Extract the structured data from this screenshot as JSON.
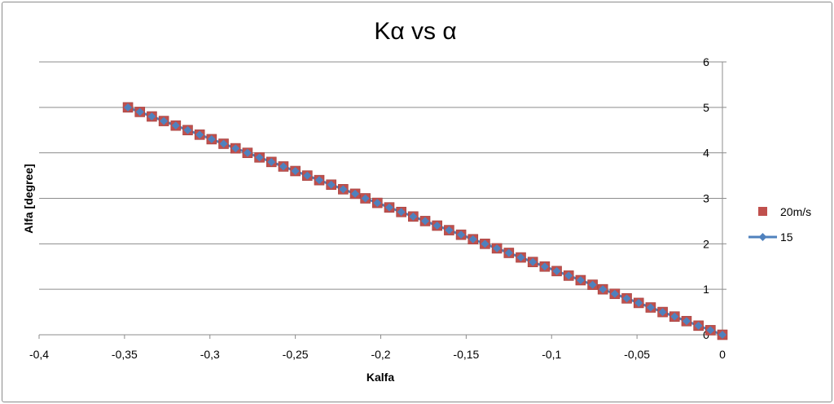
{
  "chart_data": {
    "type": "scatter",
    "title": "Kα vs α",
    "xlabel": "Kalfa",
    "ylabel": "Alfa [degree]",
    "xlim": [
      -0.4,
      0
    ],
    "ylim": [
      0,
      6
    ],
    "xticks": [
      "-0,4",
      "-0,35",
      "-0,3",
      "-0,25",
      "-0,2",
      "-0,15",
      "-0,1",
      "-0,05",
      "0"
    ],
    "xtick_values": [
      -0.4,
      -0.35,
      -0.3,
      -0.25,
      -0.2,
      -0.15,
      -0.1,
      -0.05,
      0
    ],
    "yticks": [
      "0",
      "1",
      "2",
      "3",
      "4",
      "5",
      "6"
    ],
    "ytick_values": [
      0,
      1,
      2,
      3,
      4,
      5,
      6
    ],
    "y_axis_position": "right",
    "grid": "horizontal",
    "legend_position": "right",
    "series": [
      {
        "name": "20m/s",
        "marker": "square",
        "line": false,
        "color": "#c0504d",
        "x": [
          -0.348,
          -0.341,
          -0.334,
          -0.327,
          -0.32,
          -0.313,
          -0.306,
          -0.299,
          -0.292,
          -0.285,
          -0.278,
          -0.271,
          -0.264,
          -0.257,
          -0.25,
          -0.243,
          -0.236,
          -0.229,
          -0.222,
          -0.215,
          -0.209,
          -0.202,
          -0.195,
          -0.188,
          -0.181,
          -0.174,
          -0.167,
          -0.16,
          -0.153,
          -0.146,
          -0.139,
          -0.132,
          -0.125,
          -0.118,
          -0.111,
          -0.104,
          -0.097,
          -0.09,
          -0.083,
          -0.076,
          -0.07,
          -0.063,
          -0.056,
          -0.049,
          -0.042,
          -0.035,
          -0.028,
          -0.021,
          -0.014,
          -0.007,
          0
        ],
        "y": [
          5.0,
          4.9,
          4.8,
          4.7,
          4.6,
          4.5,
          4.4,
          4.3,
          4.2,
          4.1,
          4.0,
          3.9,
          3.8,
          3.7,
          3.6,
          3.5,
          3.4,
          3.3,
          3.2,
          3.1,
          3.0,
          2.9,
          2.8,
          2.7,
          2.6,
          2.5,
          2.4,
          2.3,
          2.2,
          2.1,
          2.0,
          1.9,
          1.8,
          1.7,
          1.6,
          1.5,
          1.4,
          1.3,
          1.2,
          1.1,
          1.0,
          0.9,
          0.8,
          0.7,
          0.6,
          0.5,
          0.4,
          0.3,
          0.2,
          0.1,
          0.0
        ]
      },
      {
        "name": "15",
        "marker": "diamond",
        "line": true,
        "color": "#4f81bd",
        "x": [
          -0.348,
          -0.341,
          -0.334,
          -0.327,
          -0.32,
          -0.313,
          -0.306,
          -0.299,
          -0.292,
          -0.285,
          -0.278,
          -0.271,
          -0.264,
          -0.257,
          -0.25,
          -0.243,
          -0.236,
          -0.229,
          -0.222,
          -0.215,
          -0.209,
          -0.202,
          -0.195,
          -0.188,
          -0.181,
          -0.174,
          -0.167,
          -0.16,
          -0.153,
          -0.146,
          -0.139,
          -0.132,
          -0.125,
          -0.118,
          -0.111,
          -0.104,
          -0.097,
          -0.09,
          -0.083,
          -0.076,
          -0.07,
          -0.063,
          -0.056,
          -0.049,
          -0.042,
          -0.035,
          -0.028,
          -0.021,
          -0.014,
          -0.007,
          0
        ],
        "y": [
          5.0,
          4.9,
          4.8,
          4.7,
          4.6,
          4.5,
          4.4,
          4.3,
          4.2,
          4.1,
          4.0,
          3.9,
          3.8,
          3.7,
          3.6,
          3.5,
          3.4,
          3.3,
          3.2,
          3.1,
          3.0,
          2.9,
          2.8,
          2.7,
          2.6,
          2.5,
          2.4,
          2.3,
          2.2,
          2.1,
          2.0,
          1.9,
          1.8,
          1.7,
          1.6,
          1.5,
          1.4,
          1.3,
          1.2,
          1.1,
          1.0,
          0.9,
          0.8,
          0.7,
          0.6,
          0.5,
          0.4,
          0.3,
          0.2,
          0.1,
          0.0
        ]
      }
    ]
  }
}
